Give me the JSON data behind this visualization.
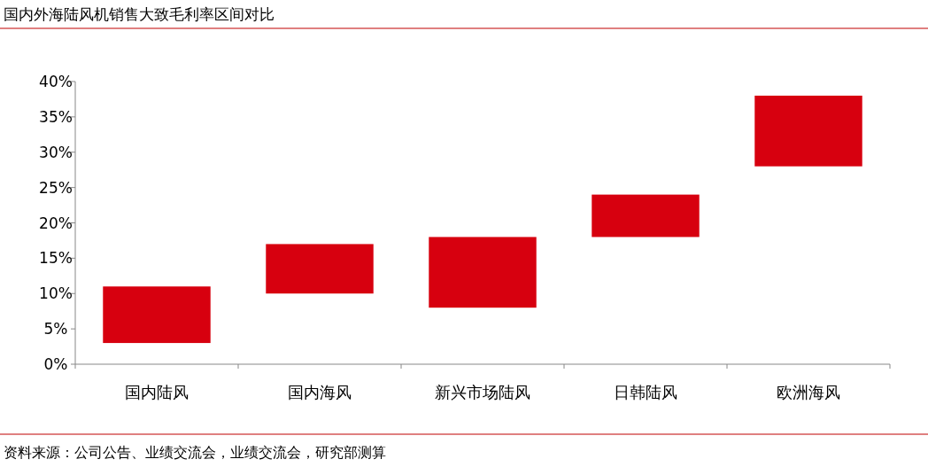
{
  "chart_data": {
    "type": "bar",
    "title": "国内外海陆风机销售大致毛利率区间对比",
    "categories": [
      "国内陆风",
      "国内海风",
      "新兴市场陆风",
      "日韩陆风",
      "欧洲海风"
    ],
    "base": [
      3,
      10,
      8,
      18,
      28
    ],
    "values": [
      8,
      7,
      10,
      6,
      10
    ],
    "color": "#d7000f",
    "ylim": [
      0,
      40
    ],
    "yticks": [
      {
        "value": 0,
        "label": "0%"
      },
      {
        "value": 5,
        "label": "5%"
      },
      {
        "value": 10,
        "label": "10%"
      },
      {
        "value": 15,
        "label": "15%"
      },
      {
        "value": 20,
        "label": "20%"
      },
      {
        "value": 25,
        "label": "25%"
      },
      {
        "value": 30,
        "label": "30%"
      },
      {
        "value": 35,
        "label": "35%"
      },
      {
        "value": 40,
        "label": "40%"
      }
    ],
    "annotations": [
      "资料来源：公司公告、业绩交流会，业绩交流会，研究部测算"
    ]
  }
}
